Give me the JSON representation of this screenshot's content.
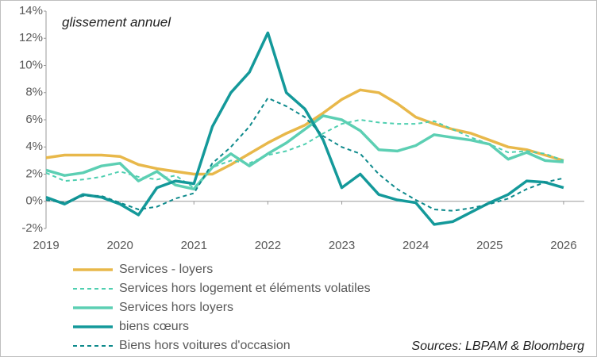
{
  "chart_data": {
    "type": "line",
    "annotation": "glissement annuel",
    "source": "Sources: LBPAM & Bloomberg",
    "x": [
      2019,
      2019.25,
      2019.5,
      2019.75,
      2020,
      2020.25,
      2020.5,
      2020.75,
      2021,
      2021.25,
      2021.5,
      2021.75,
      2022,
      2022.25,
      2022.5,
      2022.75,
      2023,
      2023.25,
      2023.5,
      2023.75,
      2024,
      2024.25,
      2024.5,
      2024.75,
      2025,
      2025.25,
      2025.5,
      2025.75,
      2026
    ],
    "xlim": [
      2019,
      2026.28
    ],
    "xticks": [
      2019,
      2020,
      2021,
      2022,
      2023,
      2024,
      2025,
      2026
    ],
    "ylim": [
      -2,
      14
    ],
    "yticks": [
      {
        "value": -2,
        "label": "-2%"
      },
      {
        "value": 0,
        "label": "0%"
      },
      {
        "value": 2,
        "label": "2%"
      },
      {
        "value": 4,
        "label": "4%"
      },
      {
        "value": 6,
        "label": "6%"
      },
      {
        "value": 8,
        "label": "8%"
      },
      {
        "value": 10,
        "label": "10%"
      },
      {
        "value": 12,
        "label": "12%"
      },
      {
        "value": 14,
        "label": "14%"
      }
    ],
    "series": [
      {
        "name": "Services  - loyers",
        "color": "#e8b84a",
        "dashed": false,
        "values": [
          3.2,
          3.4,
          3.4,
          3.4,
          3.3,
          2.7,
          2.4,
          2.2,
          2.0,
          2.0,
          2.7,
          3.5,
          4.3,
          5.0,
          5.6,
          6.5,
          7.5,
          8.2,
          8.0,
          7.2,
          6.2,
          5.7,
          5.3,
          5.0,
          4.5,
          4.0,
          3.8,
          3.4,
          3.0
        ]
      },
      {
        "name": "Services hors logement et éléments volatiles",
        "color": "#4fcfb0",
        "dashed": true,
        "values": [
          2.1,
          1.5,
          1.6,
          1.8,
          2.2,
          1.8,
          1.6,
          1.9,
          1.0,
          2.5,
          3.0,
          2.8,
          3.4,
          3.7,
          4.2,
          5.0,
          5.7,
          6.0,
          5.8,
          5.7,
          5.7,
          5.9,
          5.3,
          4.7,
          4.2,
          3.6,
          3.7,
          3.5,
          3.0
        ]
      },
      {
        "name": "Services hors loyers",
        "color": "#5ccfb3",
        "dashed": false,
        "values": [
          2.3,
          1.9,
          2.1,
          2.6,
          2.8,
          1.5,
          2.2,
          1.2,
          0.9,
          2.5,
          3.5,
          2.6,
          3.5,
          4.3,
          5.3,
          6.3,
          6.0,
          5.2,
          3.8,
          3.7,
          4.1,
          4.9,
          4.7,
          4.5,
          4.2,
          3.1,
          3.6,
          3.0,
          2.9
        ]
      },
      {
        "name": "biens cœurs",
        "color": "#14999a",
        "dashed": false,
        "values": [
          0.3,
          -0.2,
          0.5,
          0.3,
          -0.2,
          -1.0,
          1.0,
          1.5,
          1.3,
          5.5,
          8.0,
          9.5,
          12.4,
          8.0,
          6.8,
          4.5,
          1.0,
          2.0,
          0.5,
          0.1,
          -0.1,
          -1.7,
          -1.5,
          -0.8,
          -0.1,
          0.5,
          1.5,
          1.4,
          1.0
        ]
      },
      {
        "name": "Biens hors voitures d'occasion",
        "color": "#0e8a8c",
        "dashed": true,
        "values": [
          0.1,
          -0.1,
          0.4,
          0.4,
          -0.1,
          -0.6,
          -0.4,
          0.2,
          0.6,
          2.8,
          4.0,
          5.5,
          7.6,
          7.0,
          6.2,
          4.8,
          4.0,
          3.5,
          2.0,
          0.9,
          0.1,
          -0.6,
          -0.7,
          -0.5,
          -0.2,
          0.2,
          0.9,
          1.4,
          1.7
        ]
      }
    ]
  }
}
